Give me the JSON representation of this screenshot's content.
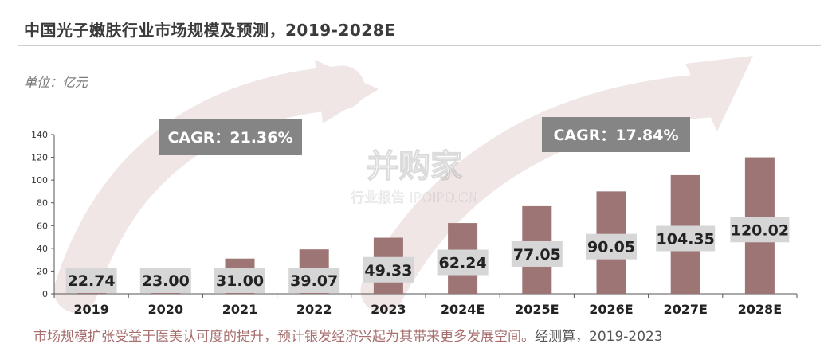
{
  "header": {
    "title": "中国光子嫩肤行业市场规模及预测，2019-2028E",
    "unit": "单位：亿元"
  },
  "watermark": {
    "brand": "并购家",
    "sub": "行业报告 IPOIPO.CN"
  },
  "footer": {
    "note": "市场规模扩张受益于医美认可度的提升，预计银发经济兴起为其带来更多发展空间。",
    "source": "经测算，2019-2023"
  },
  "colors": {
    "bar": "#9e7575",
    "label_bg": "#d6d6d6",
    "cagr_bg": "#858585",
    "arrow": "#f1e6e6"
  },
  "chart_data": {
    "type": "bar",
    "categories": [
      "2019",
      "2020",
      "2021",
      "2022",
      "2023",
      "2024E",
      "2025E",
      "2026E",
      "2027E",
      "2028E"
    ],
    "values": [
      22.74,
      23.0,
      31.0,
      39.07,
      49.33,
      62.24,
      77.05,
      90.05,
      104.35,
      120.02
    ],
    "value_labels": [
      "22.74",
      "23.00",
      "31.00",
      "39.07",
      "49.33",
      "62.24",
      "77.05",
      "90.05",
      "104.35",
      "120.02"
    ],
    "ylim": [
      0,
      140
    ],
    "yticks": [
      0,
      20,
      40,
      60,
      80,
      100,
      120,
      140
    ],
    "grid": false,
    "annotations": [
      {
        "text": "CAGR：21.36%"
      },
      {
        "text": "CAGR：17.84%"
      }
    ]
  }
}
